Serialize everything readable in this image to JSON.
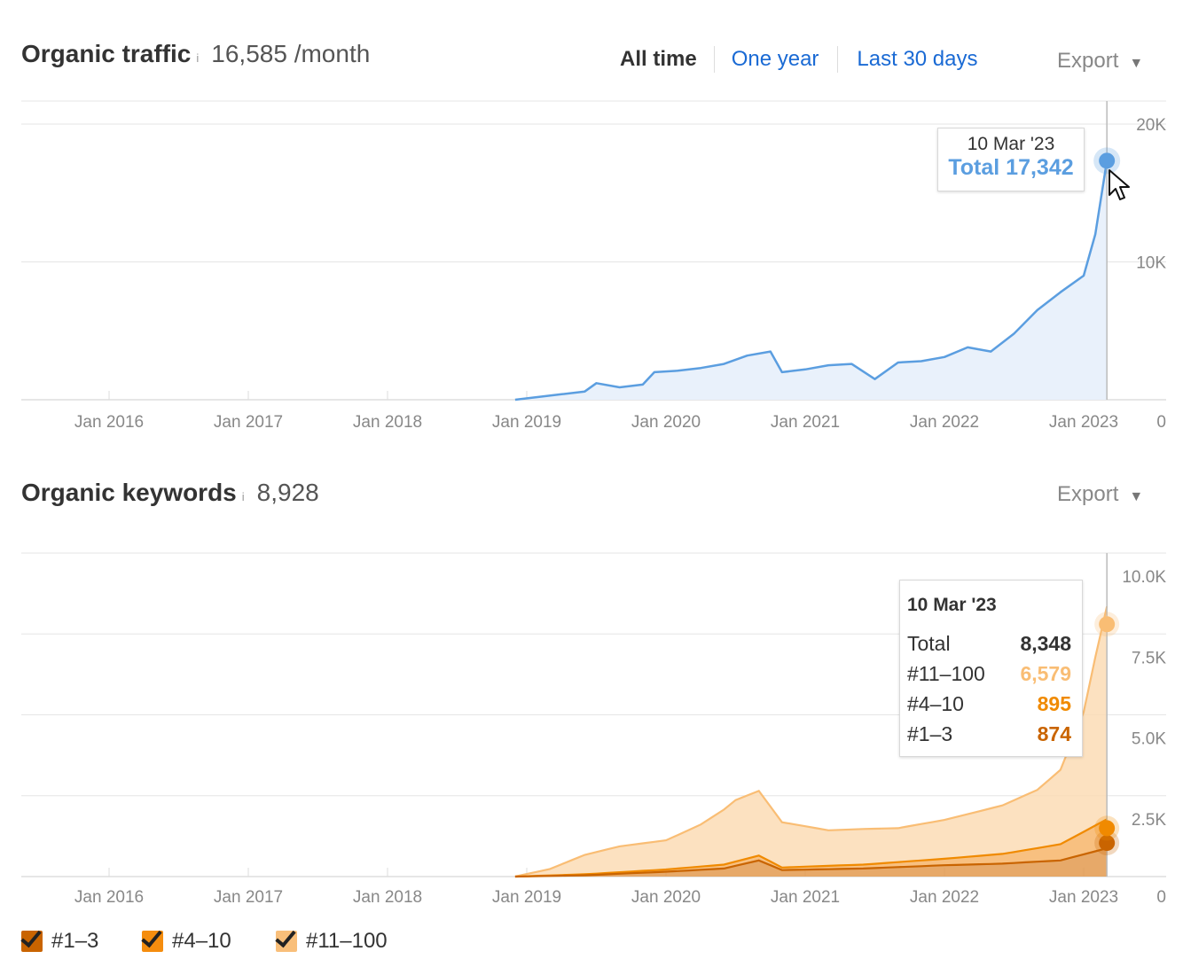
{
  "traffic": {
    "title": "Organic traffic",
    "info": "i",
    "value": "16,585 /month",
    "ranges": [
      "All time",
      "One year",
      "Last 30 days"
    ],
    "export": "Export",
    "caret": "▼",
    "tooltip": {
      "date": "10 Mar '23",
      "total": "Total 17,342"
    },
    "line_color": "#5b9ee0",
    "fill_color": "#e9f1fb",
    "chart_data": {
      "type": "area",
      "x_ticks": [
        "Jan 2016",
        "Jan 2017",
        "Jan 2018",
        "Jan 2019",
        "Jan 2020",
        "Jan 2021",
        "Jan 2022",
        "Jan 2023"
      ],
      "y_ticks": [
        "20K",
        "10K",
        "0"
      ],
      "ylim": [
        0,
        20000
      ],
      "xlim": [
        "2015-05",
        "2023-04"
      ],
      "series": [
        {
          "name": "Total",
          "points": [
            [
              "2018-12",
              0
            ],
            [
              "2019-02",
              200
            ],
            [
              "2019-04",
              400
            ],
            [
              "2019-06",
              600
            ],
            [
              "2019-07",
              1200
            ],
            [
              "2019-09",
              900
            ],
            [
              "2019-11",
              1100
            ],
            [
              "2019-12",
              2000
            ],
            [
              "2020-02",
              2100
            ],
            [
              "2020-04",
              2300
            ],
            [
              "2020-06",
              2600
            ],
            [
              "2020-08",
              3200
            ],
            [
              "2020-10",
              3500
            ],
            [
              "2020-11",
              2000
            ],
            [
              "2021-01",
              2200
            ],
            [
              "2021-03",
              2500
            ],
            [
              "2021-05",
              2600
            ],
            [
              "2021-07",
              1500
            ],
            [
              "2021-09",
              2700
            ],
            [
              "2021-11",
              2800
            ],
            [
              "2022-01",
              3100
            ],
            [
              "2022-03",
              3800
            ],
            [
              "2022-05",
              3500
            ],
            [
              "2022-07",
              4800
            ],
            [
              "2022-09",
              6500
            ],
            [
              "2022-11",
              7800
            ],
            [
              "2023-01",
              9000
            ],
            [
              "2023-02",
              12000
            ],
            [
              "2023-03",
              17342
            ]
          ]
        }
      ]
    }
  },
  "keywords": {
    "title": "Organic keywords",
    "info": "i",
    "value": "8,928",
    "export": "Export",
    "caret": "▼",
    "tooltip": {
      "date": "10 Mar '23",
      "rows": [
        {
          "label": "Total",
          "value": "8,348",
          "color": "#333333"
        },
        {
          "label": "#11–100",
          "value": "6,579",
          "color": "#f9bd74"
        },
        {
          "label": "#4–10",
          "value": "895",
          "color": "#f08a00"
        },
        {
          "label": "#1–3",
          "value": "874",
          "color": "#c96400"
        }
      ]
    },
    "legend": [
      {
        "label": "#1–3",
        "color": "#c96400"
      },
      {
        "label": "#4–10",
        "color": "#f58d0e"
      },
      {
        "label": "#11–100",
        "color": "#f9bf7a"
      }
    ],
    "chart_data": {
      "type": "area",
      "x_ticks": [
        "Jan 2016",
        "Jan 2017",
        "Jan 2018",
        "Jan 2019",
        "Jan 2020",
        "Jan 2021",
        "Jan 2022",
        "Jan 2023"
      ],
      "y_ticks": [
        "10.0K",
        "7.5K",
        "5.0K",
        "2.5K",
        "0"
      ],
      "ylim": [
        0,
        10000
      ],
      "xlim": [
        "2015-05",
        "2023-04"
      ],
      "stacked": true,
      "series": [
        {
          "name": "#1–3",
          "color": "#c96400",
          "points": [
            [
              "2018-12",
              0
            ],
            [
              "2019-06",
              40
            ],
            [
              "2020-01",
              150
            ],
            [
              "2020-06",
              250
            ],
            [
              "2020-09",
              500
            ],
            [
              "2020-11",
              200
            ],
            [
              "2021-06",
              250
            ],
            [
              "2022-01",
              350
            ],
            [
              "2022-06",
              400
            ],
            [
              "2022-11",
              500
            ],
            [
              "2023-03",
              874
            ]
          ]
        },
        {
          "name": "#4–10",
          "color": "#f08a00",
          "points": [
            [
              "2018-12",
              0
            ],
            [
              "2019-06",
              30
            ],
            [
              "2020-01",
              70
            ],
            [
              "2020-06",
              120
            ],
            [
              "2020-09",
              150
            ],
            [
              "2020-11",
              80
            ],
            [
              "2021-06",
              120
            ],
            [
              "2022-01",
              200
            ],
            [
              "2022-06",
              300
            ],
            [
              "2022-11",
              500
            ],
            [
              "2023-03",
              895
            ]
          ]
        },
        {
          "name": "#11–100",
          "color": "#f9bd74",
          "points": [
            [
              "2018-12",
              0
            ],
            [
              "2019-03",
              200
            ],
            [
              "2019-06",
              600
            ],
            [
              "2019-09",
              800
            ],
            [
              "2020-01",
              900
            ],
            [
              "2020-04",
              1300
            ],
            [
              "2020-07",
              1900
            ],
            [
              "2020-09",
              2000
            ],
            [
              "2020-11",
              1400
            ],
            [
              "2021-03",
              1100
            ],
            [
              "2021-06",
              1100
            ],
            [
              "2021-09",
              1050
            ],
            [
              "2022-01",
              1200
            ],
            [
              "2022-06",
              1500
            ],
            [
              "2022-09",
              1800
            ],
            [
              "2022-11",
              2300
            ],
            [
              "2023-01",
              3700
            ],
            [
              "2023-02",
              5200
            ],
            [
              "2023-03",
              6579
            ]
          ]
        }
      ]
    }
  }
}
